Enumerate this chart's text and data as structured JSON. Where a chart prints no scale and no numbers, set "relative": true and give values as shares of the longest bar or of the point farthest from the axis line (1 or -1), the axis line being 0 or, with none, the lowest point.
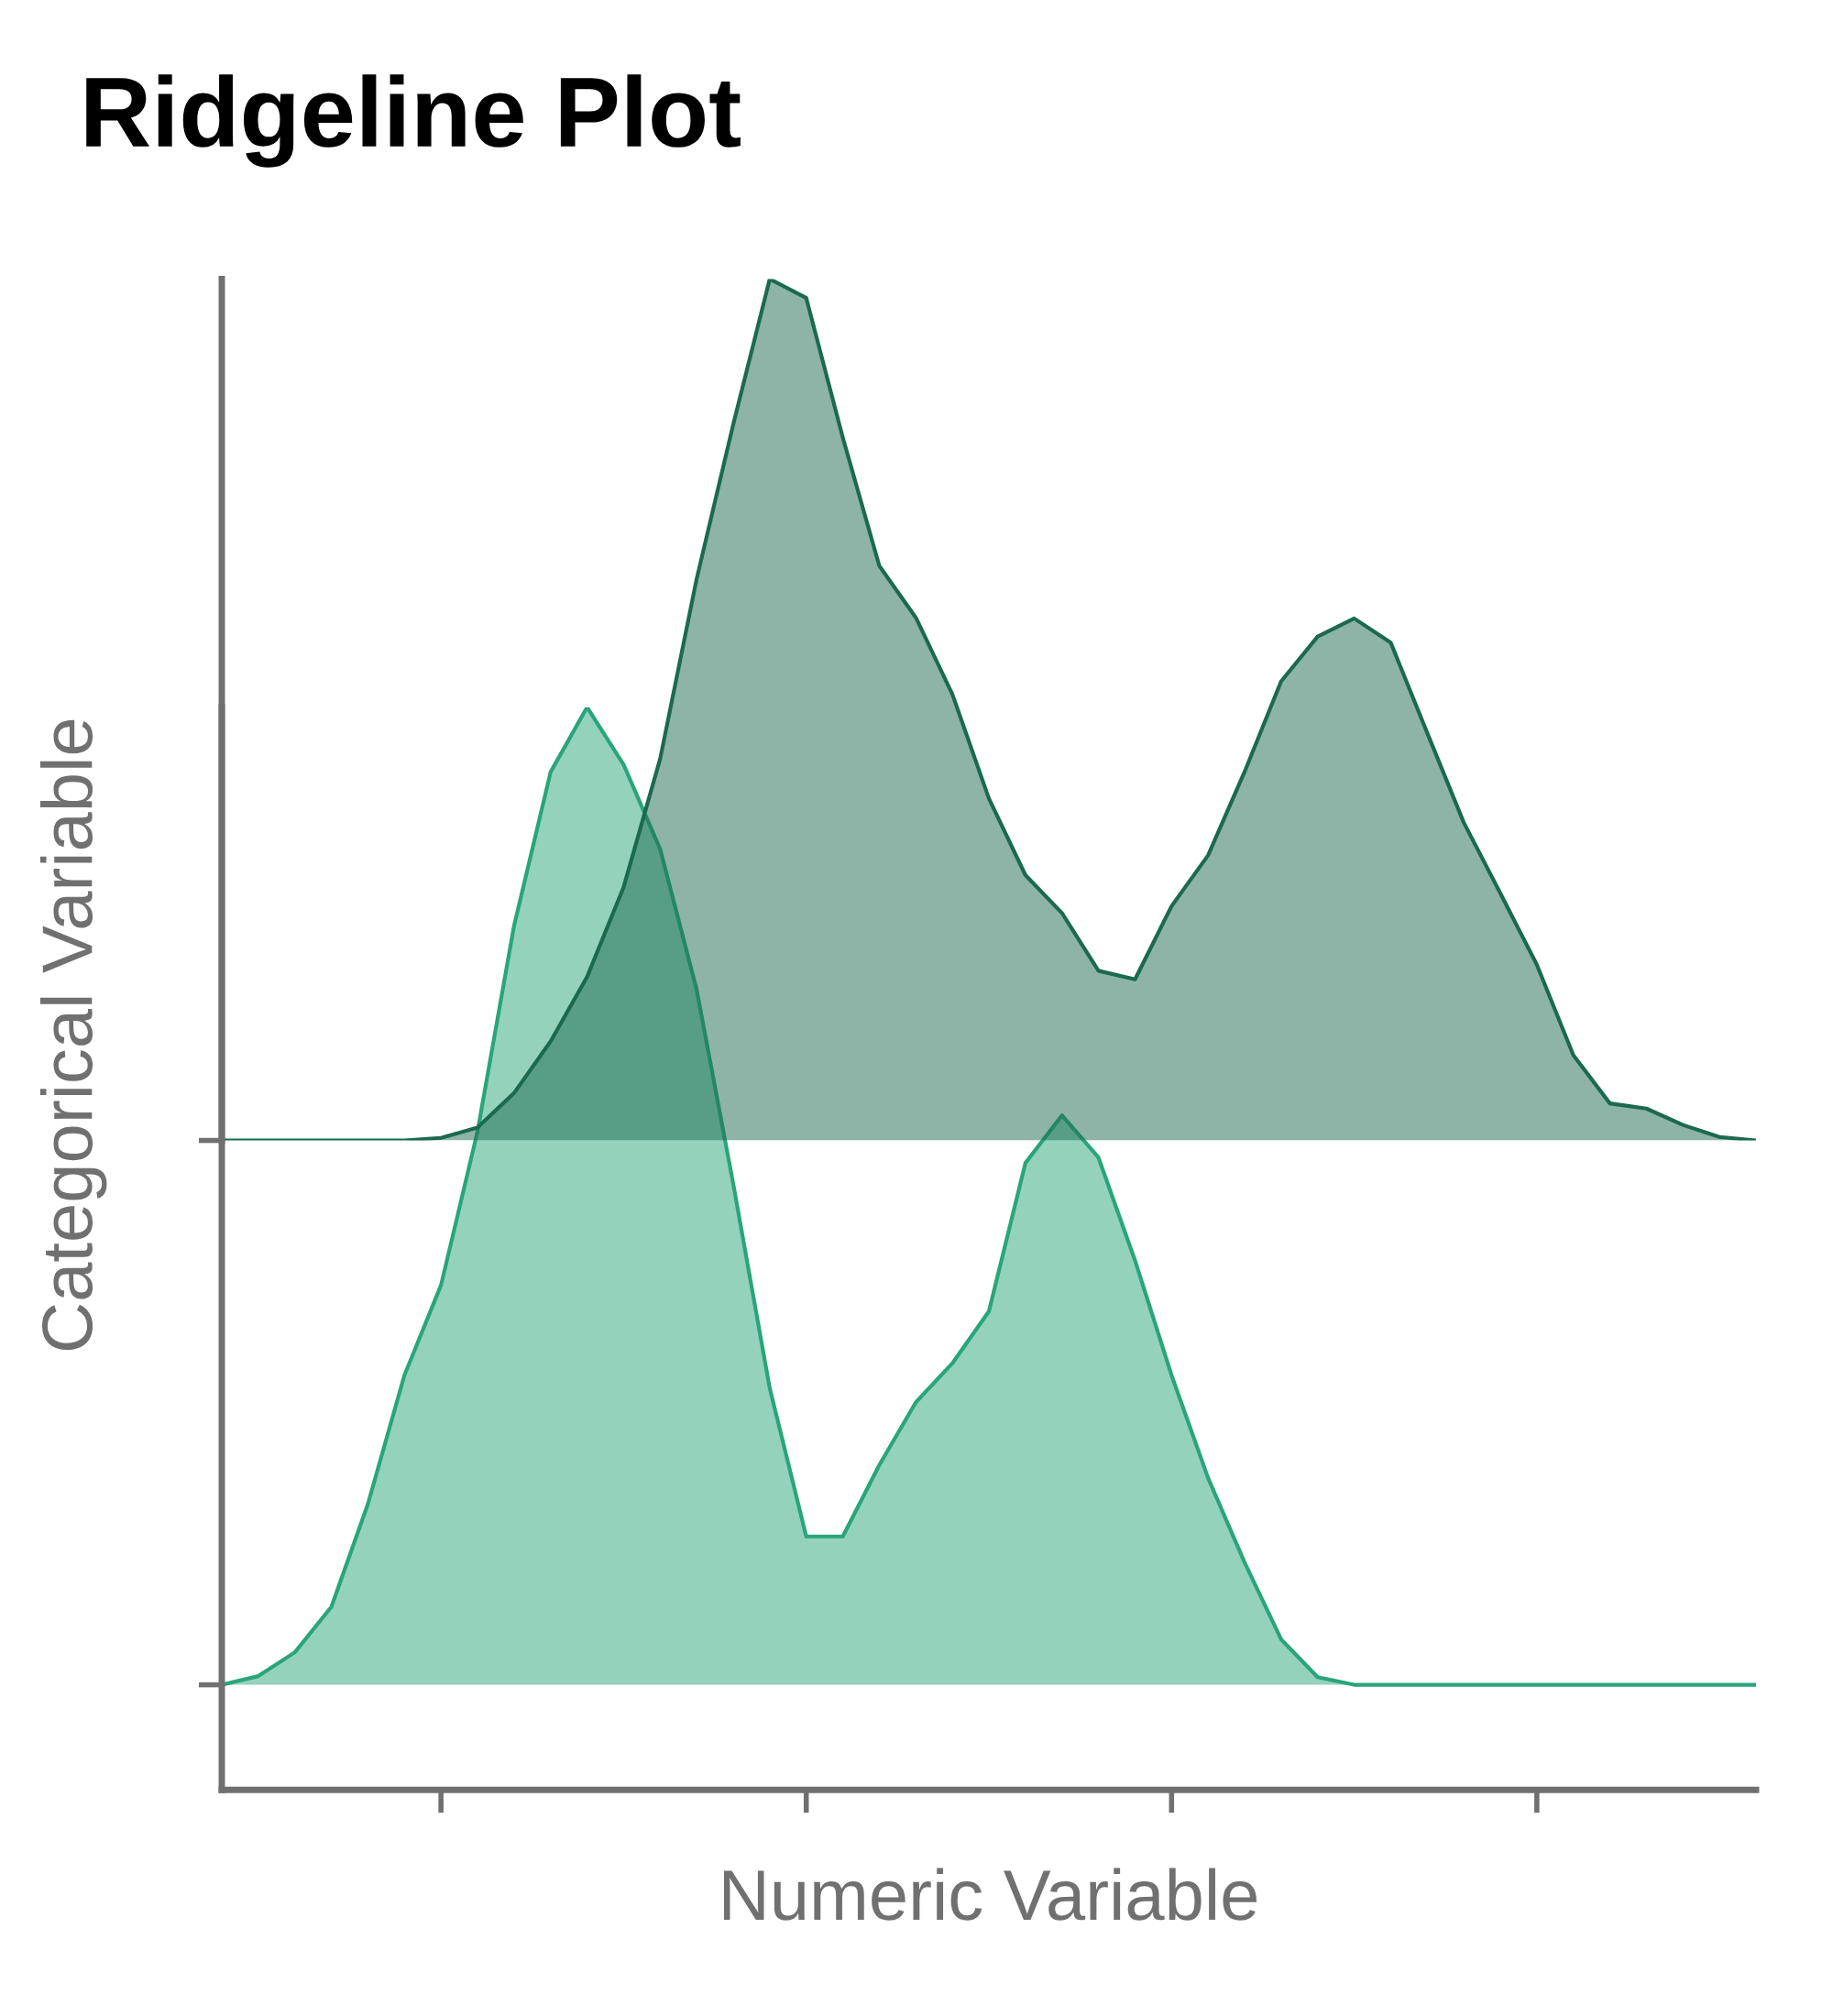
{
  "chart_data": [
    {
      "type": "area",
      "title": "Ridgeline Plot",
      "relative": true,
      "categories": [
        null,
        null,
        null,
        null,
        null,
        null,
        null,
        null,
        null,
        null,
        null,
        null,
        null,
        null,
        null,
        null,
        null,
        null,
        null,
        null,
        null,
        null,
        null,
        null,
        null,
        null,
        null,
        null,
        null,
        null,
        null,
        null,
        null,
        null,
        null,
        null,
        null,
        null,
        null,
        null,
        null,
        null,
        null
      ],
      "series": [
        {
          "color": "#1b6a50",
          "values": [
            0,
            0,
            0,
            0,
            0,
            0,
            0.003,
            0.015,
            0.055,
            0.115,
            0.19,
            0.294,
            0.443,
            0.652,
            0.831,
            1.0,
            0.978,
            0.816,
            0.667,
            0.607,
            0.518,
            0.397,
            0.308,
            0.264,
            0.197,
            0.187,
            0.272,
            0.331,
            0.428,
            0.533,
            0.585,
            0.606,
            0.578,
            0.473,
            0.369,
            0.287,
            0.204,
            0.099,
            0.043,
            0.037,
            0.018,
            0.004,
            0
          ]
        }
      ]
    },
    {
      "type": "area",
      "xlabel": "Numeric Variable",
      "ylabel": "Categorical Variable",
      "relative": true,
      "categories": [
        null,
        null,
        null,
        null,
        null,
        null,
        null,
        null,
        null,
        null,
        null,
        null,
        null,
        null,
        null,
        null,
        null,
        null,
        null,
        null,
        null,
        null,
        null,
        null,
        null,
        null,
        null,
        null,
        null,
        null,
        null,
        null,
        null,
        null,
        null,
        null,
        null,
        null,
        null,
        null,
        null,
        null,
        null
      ],
      "series": [
        {
          "color": "#29a57a",
          "values": [
            0.097,
            0.105,
            0.127,
            0.169,
            0.264,
            0.383,
            0.466,
            0.608,
            0.798,
            0.94,
            1.0,
            0.947,
            0.869,
            0.739,
            0.56,
            0.371,
            0.234,
            0.234,
            0.3,
            0.358,
            0.394,
            0.442,
            0.579,
            0.623,
            0.584,
            0.489,
            0.383,
            0.288,
            0.21,
            0.139,
            0.104,
            0.097,
            0.097,
            0.097,
            0.097,
            0.097,
            0.097,
            0.097,
            0.097,
            0.097,
            0.097,
            0.097,
            0.097
          ]
        }
      ]
    }
  ]
}
